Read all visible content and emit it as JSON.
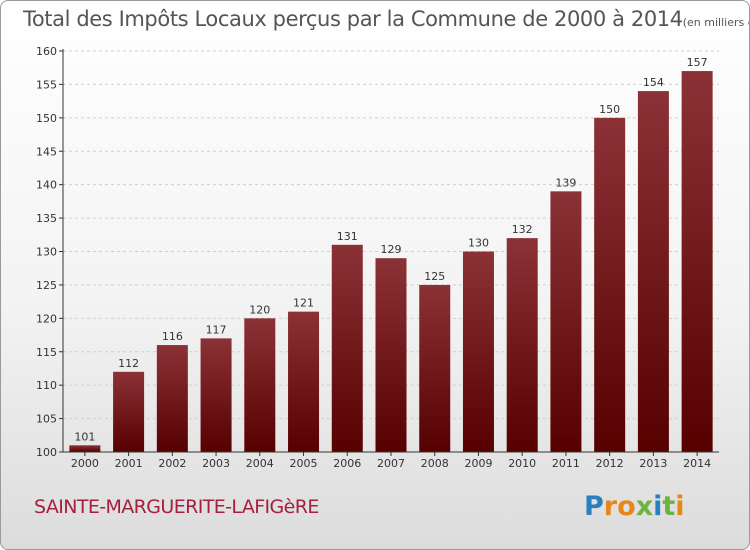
{
  "title": "Total des Impôts Locaux perçus par la Commune de 2000 à 2014",
  "title_unit": "(en milliers d'€)",
  "commune": "SAINTE-MARGUERITE-LAFIGèRE",
  "logo": {
    "letters": [
      "P",
      "r",
      "o",
      "x",
      "i",
      "t",
      "i"
    ],
    "colors": [
      "#2a7fc0",
      "#e8861a",
      "#e8861a",
      "#6db33f",
      "#2a7fc0",
      "#6db33f",
      "#e8861a"
    ]
  },
  "colors": {
    "bar_top": "#8b3236",
    "bar_bottom": "#560000",
    "axis": "#333333",
    "grid": "#cfcfcf"
  },
  "chart_data": {
    "type": "bar",
    "title": "Total des Impôts Locaux perçus par la Commune de 2000 à 2014",
    "categories": [
      "2000",
      "2001",
      "2002",
      "2003",
      "2004",
      "2005",
      "2006",
      "2007",
      "2008",
      "2009",
      "2010",
      "2011",
      "2012",
      "2013",
      "2014"
    ],
    "values": [
      101,
      112,
      116,
      117,
      120,
      121,
      131,
      129,
      125,
      130,
      132,
      139,
      150,
      154,
      157
    ],
    "ylim": [
      100,
      160
    ],
    "yticks": [
      100,
      105,
      110,
      115,
      120,
      125,
      130,
      135,
      140,
      145,
      150,
      155,
      160
    ],
    "grid": true,
    "xlabel": "",
    "ylabel": ""
  }
}
